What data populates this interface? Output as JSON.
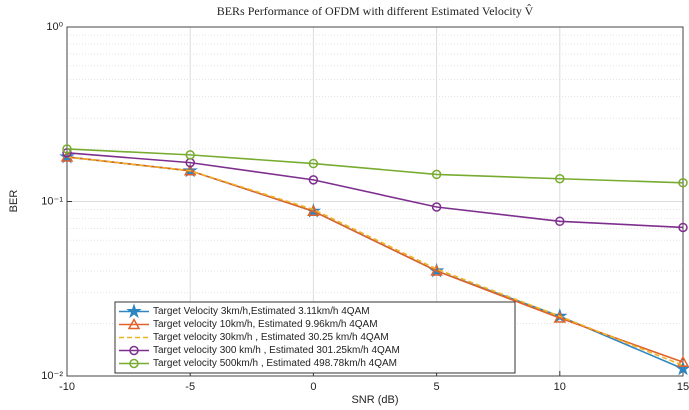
{
  "chart_data": {
    "type": "line",
    "title": "BERs Performance of OFDM with different Estimated Velocity V̂",
    "x_label": "SNR (dB)",
    "y_label": "BER",
    "x": [
      -10,
      -5,
      0,
      5,
      10,
      15
    ],
    "xlim": [
      -10,
      15
    ],
    "xticks": [
      -10,
      -5,
      0,
      5,
      10,
      15
    ],
    "ylim": [
      0.01,
      1
    ],
    "log_y": true,
    "yticks": [
      {
        "value": 0.01,
        "label": "10⁻²"
      },
      {
        "value": 0.1,
        "label": "10⁻¹"
      },
      {
        "value": 1,
        "label": "10⁰"
      }
    ],
    "grid": true,
    "minor_grid": true,
    "legend": "lower left",
    "series": [
      {
        "name": "Target Velocity 3km/h,Estimated 3.11km/h 4QAM",
        "color": "#2e86c1",
        "marker": "star",
        "dash": false,
        "values": [
          0.18,
          0.15,
          0.088,
          0.04,
          0.022,
          0.011
        ]
      },
      {
        "name": "Target velocity 10km/h, Estimated 9.96km/h 4QAM",
        "color": "#e0622a",
        "marker": "triangle",
        "dash": false,
        "values": [
          0.18,
          0.15,
          0.088,
          0.04,
          0.0215,
          0.012
        ]
      },
      {
        "name": "Target velocity 30km/h , Estimated 30.25 km/h 4QAM",
        "color": "#f0b323",
        "marker": "none",
        "dash": true,
        "values": [
          0.18,
          0.15,
          0.09,
          0.041,
          0.022,
          0.0115
        ]
      },
      {
        "name": "Target velocity 300 km/h , Estimated 301.25km/h 4QAM",
        "color": "#7e2f8e",
        "marker": "circle",
        "dash": false,
        "values": [
          0.19,
          0.167,
          0.133,
          0.093,
          0.077,
          0.071
        ]
      },
      {
        "name": "Target velocity 500km/h , Estimated 498.78km/h 4QAM",
        "color": "#77ac30",
        "marker": "circle",
        "dash": false,
        "values": [
          0.2,
          0.185,
          0.165,
          0.143,
          0.135,
          0.128
        ]
      }
    ]
  }
}
